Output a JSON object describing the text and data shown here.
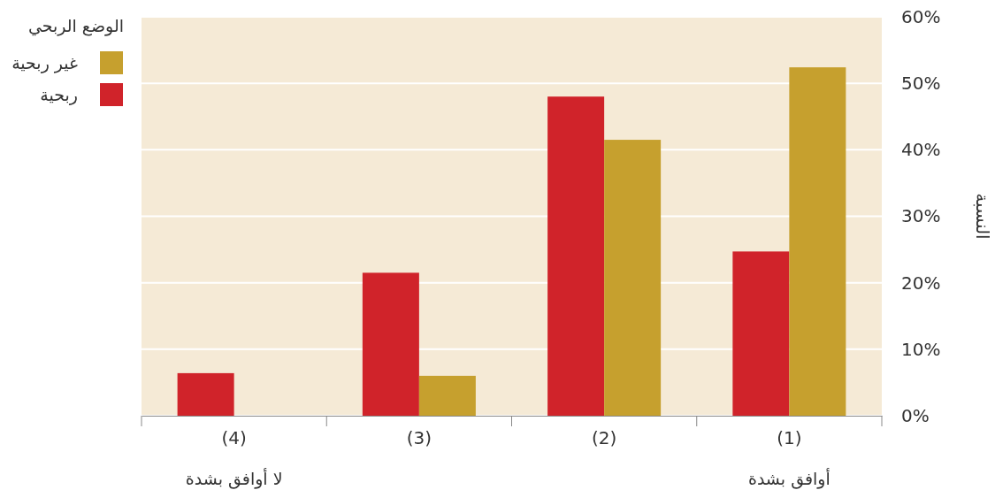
{
  "chart_data": {
    "type": "bar",
    "categories": [
      "(4)",
      "(3)",
      "(2)",
      "(1)"
    ],
    "series": [
      {
        "name": "ربحية",
        "color": "#d0232a",
        "values": [
          6.4,
          21.5,
          48.0,
          24.7
        ]
      },
      {
        "name": "غير ربحية",
        "color": "#c6a02e",
        "values": [
          0,
          6.0,
          41.5,
          52.4
        ]
      }
    ],
    "ylabel": "النسبة",
    "legend_title": "الوضع الربحي",
    "legend": "top left",
    "ylim": [
      0,
      60
    ],
    "yticks": [
      {
        "value": 0,
        "label": "0%"
      },
      {
        "value": 10,
        "label": "10%"
      },
      {
        "value": 20,
        "label": "20%"
      },
      {
        "value": 30,
        "label": "30%"
      },
      {
        "value": 40,
        "label": "40%"
      },
      {
        "value": 50,
        "label": "50%"
      },
      {
        "value": 60,
        "label": "60%"
      }
    ],
    "grid": "y",
    "annotations": [
      "لا أوافق بشدة",
      "أوافق بشدة"
    ]
  }
}
